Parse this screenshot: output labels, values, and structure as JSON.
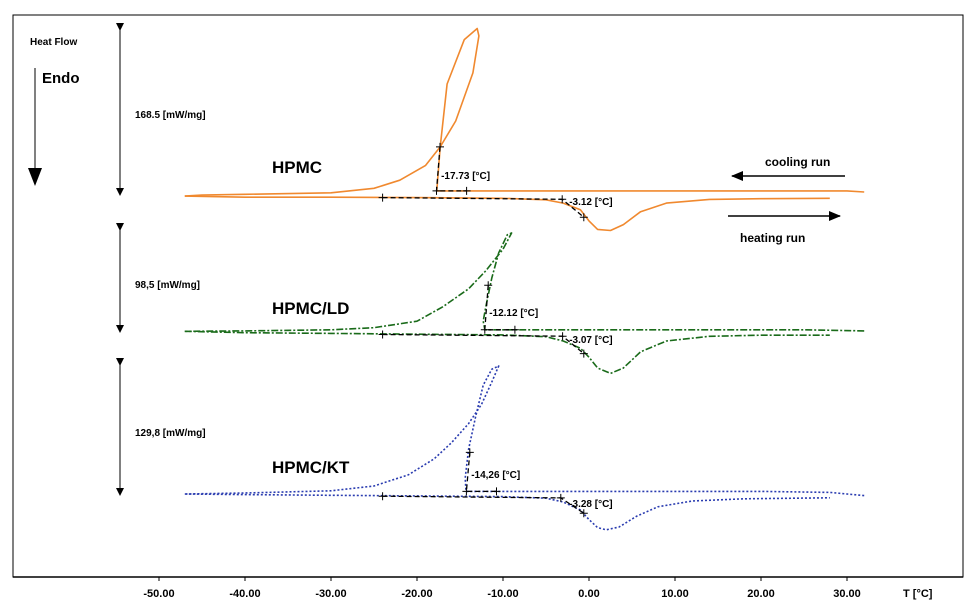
{
  "chart_data": {
    "type": "line",
    "title": "",
    "ylabel": "Heat Flow",
    "endo_label": "Endo",
    "xlabel": "T [°C]",
    "xlim": [
      -55,
      35
    ],
    "x_ticks": [
      "-50.00",
      "-40.00",
      "-30.00",
      "-20.00",
      "-10.00",
      "0.00",
      "10.00",
      "20.00",
      "30.00"
    ],
    "x_tick_values": [
      -50,
      -40,
      -30,
      -20,
      -10,
      0,
      10,
      20,
      30
    ],
    "run_labels": {
      "cooling": "cooling run",
      "heating": "heating run"
    },
    "series": [
      {
        "name": "HPMC",
        "color": "#f0892f",
        "dash": "solid",
        "scale_label": "168.5 [mW/mg]",
        "cooling_onset_label": "-17.73 [°C]",
        "heating_onset_label": "-3.12 [°C]",
        "cooling": [
          [
            32,
            0.8
          ],
          [
            30,
            1.1
          ],
          [
            20,
            1.1
          ],
          [
            10,
            1.1
          ],
          [
            0,
            1.1
          ],
          [
            -10,
            1.1
          ],
          [
            -15,
            1.1
          ],
          [
            -17.7,
            1.1
          ],
          [
            -17.3,
            13
          ],
          [
            -16.5,
            30
          ],
          [
            -14.5,
            42
          ],
          [
            -13,
            45
          ],
          [
            -12.8,
            43
          ],
          [
            -13.5,
            33
          ],
          [
            -15.5,
            20
          ],
          [
            -17.3,
            13
          ],
          [
            -19,
            8
          ],
          [
            -22,
            4
          ],
          [
            -25,
            1.8
          ],
          [
            -30,
            0.6
          ],
          [
            -40,
            0.2
          ],
          [
            -45,
            0
          ],
          [
            -47,
            -0.3
          ]
        ],
        "heating": [
          [
            -47,
            -0.3
          ],
          [
            -40,
            -0.6
          ],
          [
            -30,
            -0.6
          ],
          [
            -20,
            -0.7
          ],
          [
            -10,
            -0.9
          ],
          [
            -5,
            -1.3
          ],
          [
            -3,
            -2.2
          ],
          [
            -1,
            -4
          ],
          [
            0,
            -7
          ],
          [
            1,
            -9.3
          ],
          [
            2.5,
            -9.6
          ],
          [
            4,
            -8
          ],
          [
            6,
            -4.5
          ],
          [
            9,
            -2.2
          ],
          [
            14,
            -1.2
          ],
          [
            20,
            -1
          ],
          [
            28,
            -0.9
          ]
        ]
      },
      {
        "name": "HPMC/LD",
        "color": "#1a6b1a",
        "dash": "dashdot",
        "scale_label": "98,5 [mW/mg]",
        "cooling_onset_label": "-12.12 [°C]",
        "heating_onset_label": "-3.07 [°C]",
        "cooling": [
          [
            32,
            0.3
          ],
          [
            25,
            0.6
          ],
          [
            15,
            0.6
          ],
          [
            5,
            0.6
          ],
          [
            -5,
            0.6
          ],
          [
            -10,
            0.6
          ],
          [
            -12.1,
            0.6
          ],
          [
            -12.3,
            3
          ],
          [
            -12,
            7
          ],
          [
            -11.3,
            15
          ],
          [
            -10.5,
            22
          ],
          [
            -9.5,
            27
          ],
          [
            -9,
            27.5
          ],
          [
            -10,
            23
          ],
          [
            -12,
            17
          ],
          [
            -14,
            12
          ],
          [
            -17,
            7
          ],
          [
            -20,
            3
          ],
          [
            -25,
            1.2
          ],
          [
            -30,
            0.6
          ],
          [
            -40,
            0.3
          ],
          [
            -47,
            0.2
          ]
        ],
        "heating": [
          [
            -47,
            0.2
          ],
          [
            -40,
            -0.2
          ],
          [
            -30,
            -0.4
          ],
          [
            -20,
            -0.6
          ],
          [
            -10,
            -0.8
          ],
          [
            -5,
            -1.3
          ],
          [
            -3,
            -2.5
          ],
          [
            -1,
            -4.5
          ],
          [
            0,
            -7
          ],
          [
            1,
            -10
          ],
          [
            2.5,
            -11.5
          ],
          [
            4,
            -10
          ],
          [
            6,
            -5.5
          ],
          [
            9,
            -2.5
          ],
          [
            14,
            -1.2
          ],
          [
            20,
            -0.9
          ],
          [
            28,
            -0.9
          ]
        ]
      },
      {
        "name": "HPMC/KT",
        "color": "#2a3cb0",
        "dash": "dotted",
        "scale_label": "129,8 [mW/mg]",
        "cooling_onset_label": "-14,26 [°C]",
        "heating_onset_label": "-3.28 [°C]",
        "cooling": [
          [
            32,
            -0.5
          ],
          [
            28,
            0.5
          ],
          [
            20,
            0.8
          ],
          [
            10,
            0.8
          ],
          [
            0,
            0.8
          ],
          [
            -10,
            0.8
          ],
          [
            -14.3,
            0.8
          ],
          [
            -14.4,
            5
          ],
          [
            -14,
            14
          ],
          [
            -13.2,
            24
          ],
          [
            -12.3,
            34
          ],
          [
            -11.3,
            39
          ],
          [
            -10.5,
            40
          ],
          [
            -11.3,
            35
          ],
          [
            -12.5,
            28
          ],
          [
            -14,
            22
          ],
          [
            -16,
            16
          ],
          [
            -18,
            11
          ],
          [
            -21,
            6
          ],
          [
            -25,
            2.5
          ],
          [
            -30,
            1
          ],
          [
            -40,
            0.3
          ],
          [
            -47,
            0
          ]
        ],
        "heating": [
          [
            -47,
            0
          ],
          [
            -40,
            -0.2
          ],
          [
            -30,
            -0.4
          ],
          [
            -20,
            -0.6
          ],
          [
            -10,
            -0.8
          ],
          [
            -5,
            -1.3
          ],
          [
            -3,
            -2.5
          ],
          [
            -1,
            -5
          ],
          [
            0,
            -8
          ],
          [
            1,
            -10.5
          ],
          [
            2,
            -11.2
          ],
          [
            3.5,
            -10.3
          ],
          [
            5.5,
            -7
          ],
          [
            8,
            -4
          ],
          [
            12,
            -2.2
          ],
          [
            18,
            -1.5
          ],
          [
            28,
            -1.2
          ]
        ]
      }
    ]
  }
}
